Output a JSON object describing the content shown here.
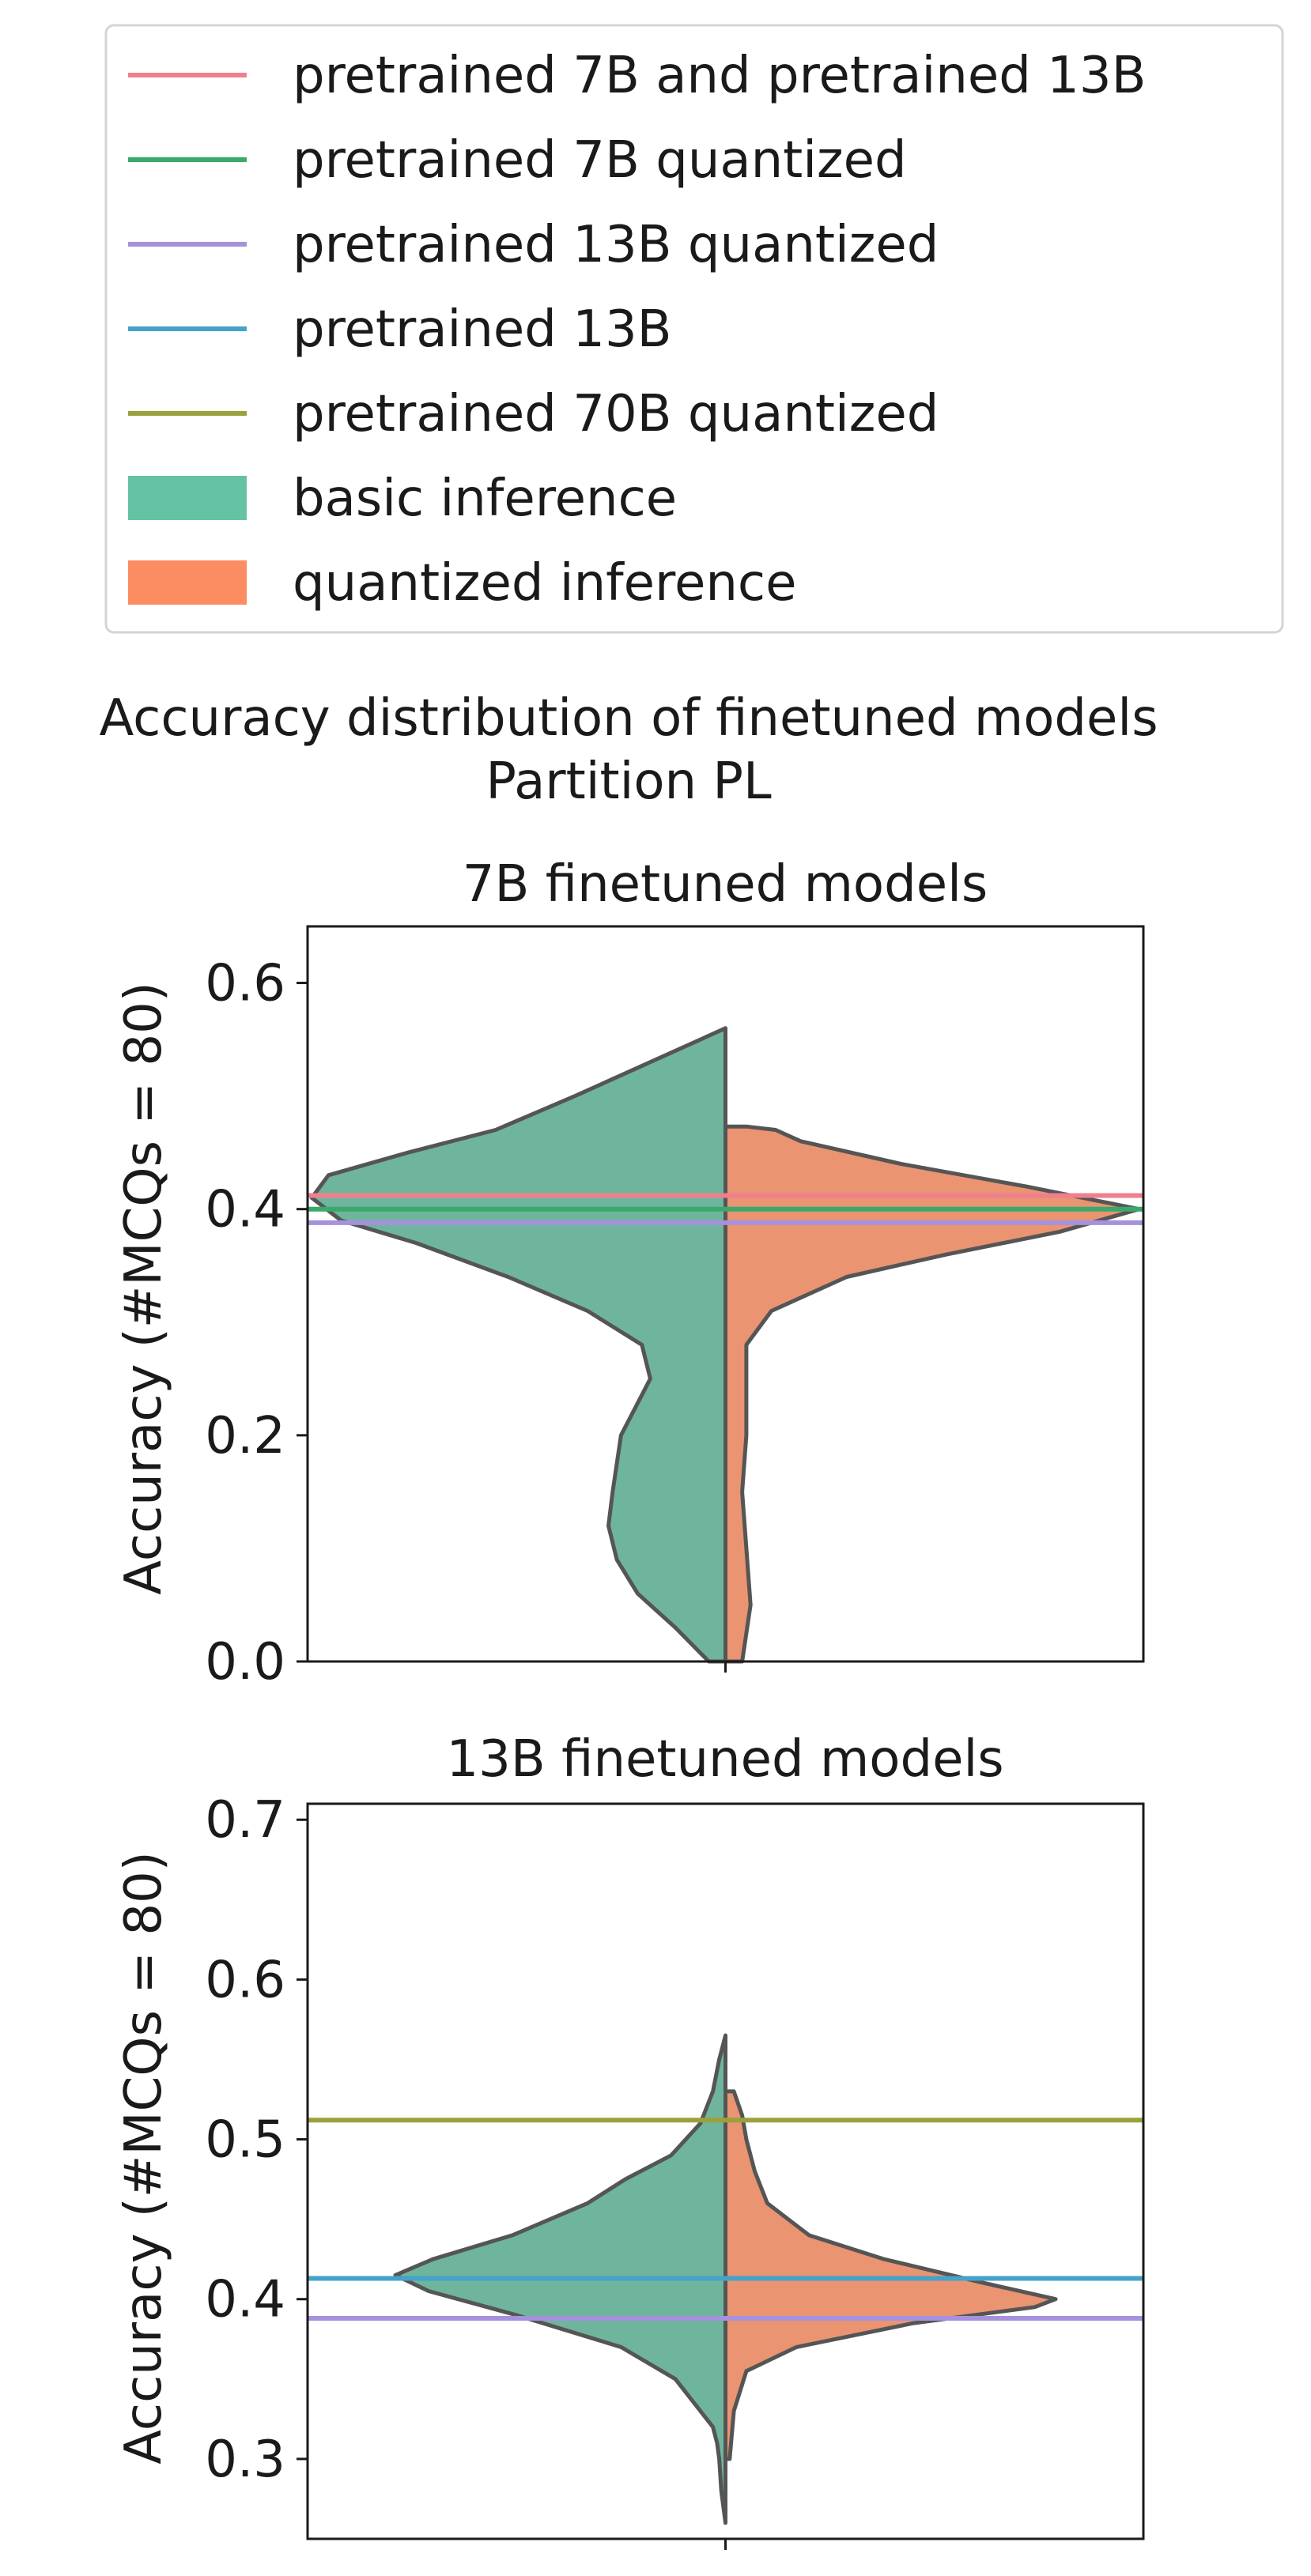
{
  "figure": {
    "suptitle_line1": "Accuracy distribution of finetuned models",
    "suptitle_line2": "Partition PL"
  },
  "legend": {
    "position": "top",
    "entries": [
      {
        "label": "pretrained 7B and pretrained 13B",
        "kind": "line",
        "color": "#f07f8e"
      },
      {
        "label": "pretrained 7B quantized",
        "kind": "line",
        "color": "#3aa96b"
      },
      {
        "label": "pretrained 13B quantized",
        "kind": "line",
        "color": "#a691dc"
      },
      {
        "label": "pretrained 13B",
        "kind": "line",
        "color": "#45a2c9"
      },
      {
        "label": "pretrained 70B quantized",
        "kind": "line",
        "color": "#9aa13a"
      },
      {
        "label": "basic inference",
        "kind": "patch",
        "color": "#66c2a5"
      },
      {
        "label": "quantized inference",
        "kind": "patch",
        "color": "#fc8d62"
      }
    ]
  },
  "chart_data": [
    {
      "type": "violin",
      "title": "7B finetuned models",
      "ylabel": "Accuracy (#MCQs = 80)",
      "ylim": [
        0,
        0.65
      ],
      "yticks": [
        0.0,
        0.2,
        0.4,
        0.6
      ],
      "ytick_labels": [
        "0.0",
        "0.2",
        "0.4",
        "0.6"
      ],
      "split_colors": {
        "left": "#6fb59e",
        "right": "#ea9472"
      },
      "series": [
        {
          "name": "basic inference",
          "side": "left",
          "max_width": 0.99,
          "density": [
            [
              0.0,
              0.04
            ],
            [
              0.03,
              0.12
            ],
            [
              0.06,
              0.21
            ],
            [
              0.09,
              0.26
            ],
            [
              0.12,
              0.28
            ],
            [
              0.15,
              0.27
            ],
            [
              0.2,
              0.25
            ],
            [
              0.25,
              0.18
            ],
            [
              0.28,
              0.2
            ],
            [
              0.31,
              0.33
            ],
            [
              0.34,
              0.52
            ],
            [
              0.37,
              0.74
            ],
            [
              0.39,
              0.92
            ],
            [
              0.41,
              0.99
            ],
            [
              0.43,
              0.95
            ],
            [
              0.45,
              0.76
            ],
            [
              0.47,
              0.55
            ],
            [
              0.5,
              0.36
            ],
            [
              0.53,
              0.18
            ],
            [
              0.56,
              0.0
            ]
          ]
        },
        {
          "name": "quantized inference",
          "side": "right",
          "max_width": 0.99,
          "density": [
            [
              0.0,
              0.04
            ],
            [
              0.05,
              0.06
            ],
            [
              0.1,
              0.05
            ],
            [
              0.15,
              0.04
            ],
            [
              0.2,
              0.05
            ],
            [
              0.25,
              0.05
            ],
            [
              0.28,
              0.05
            ],
            [
              0.31,
              0.11
            ],
            [
              0.34,
              0.29
            ],
            [
              0.36,
              0.53
            ],
            [
              0.38,
              0.8
            ],
            [
              0.4,
              0.99
            ],
            [
              0.42,
              0.72
            ],
            [
              0.44,
              0.42
            ],
            [
              0.46,
              0.18
            ],
            [
              0.47,
              0.12
            ],
            [
              0.473,
              0.05
            ]
          ]
        }
      ],
      "hlines": [
        {
          "name": "pretrained 7B and pretrained 13B",
          "y": 0.412,
          "color": "#f07f8e"
        },
        {
          "name": "pretrained 7B quantized",
          "y": 0.4,
          "color": "#3aa96b"
        },
        {
          "name": "pretrained 13B quantized",
          "y": 0.388,
          "color": "#a691dc"
        }
      ]
    },
    {
      "type": "violin",
      "title": "13B finetuned models",
      "ylabel": "Accuracy (#MCQs = 80)",
      "ylim": [
        0.25,
        0.71
      ],
      "yticks": [
        0.3,
        0.4,
        0.5,
        0.6,
        0.7
      ],
      "ytick_labels": [
        "0.3",
        "0.4",
        "0.5",
        "0.6",
        "0.7"
      ],
      "split_colors": {
        "left": "#6fb59e",
        "right": "#ea9472"
      },
      "series": [
        {
          "name": "basic inference",
          "side": "left",
          "max_width": 0.79,
          "density": [
            [
              0.26,
              0.0
            ],
            [
              0.28,
              0.01
            ],
            [
              0.3,
              0.015
            ],
            [
              0.31,
              0.02
            ],
            [
              0.32,
              0.03
            ],
            [
              0.33,
              0.06
            ],
            [
              0.35,
              0.12
            ],
            [
              0.37,
              0.25
            ],
            [
              0.39,
              0.5
            ],
            [
              0.405,
              0.71
            ],
            [
              0.415,
              0.79
            ],
            [
              0.425,
              0.7
            ],
            [
              0.44,
              0.51
            ],
            [
              0.46,
              0.33
            ],
            [
              0.475,
              0.24
            ],
            [
              0.49,
              0.13
            ],
            [
              0.51,
              0.06
            ],
            [
              0.53,
              0.03
            ],
            [
              0.55,
              0.015
            ],
            [
              0.565,
              0.0
            ]
          ]
        },
        {
          "name": "quantized inference",
          "side": "right",
          "max_width": 0.79,
          "density": [
            [
              0.3,
              0.01
            ],
            [
              0.33,
              0.02
            ],
            [
              0.355,
              0.05
            ],
            [
              0.37,
              0.17
            ],
            [
              0.385,
              0.45
            ],
            [
              0.395,
              0.74
            ],
            [
              0.4,
              0.79
            ],
            [
              0.41,
              0.62
            ],
            [
              0.425,
              0.38
            ],
            [
              0.44,
              0.2
            ],
            [
              0.46,
              0.1
            ],
            [
              0.48,
              0.07
            ],
            [
              0.5,
              0.05
            ],
            [
              0.515,
              0.04
            ],
            [
              0.53,
              0.02
            ]
          ]
        }
      ],
      "hlines": [
        {
          "name": "pretrained 70B quantized",
          "y": 0.512,
          "color": "#9aa13a"
        },
        {
          "name": "pretrained 13B",
          "y": 0.413,
          "color": "#45a2c9"
        },
        {
          "name": "pretrained 13B quantized",
          "y": 0.388,
          "color": "#a691dc"
        }
      ]
    }
  ]
}
